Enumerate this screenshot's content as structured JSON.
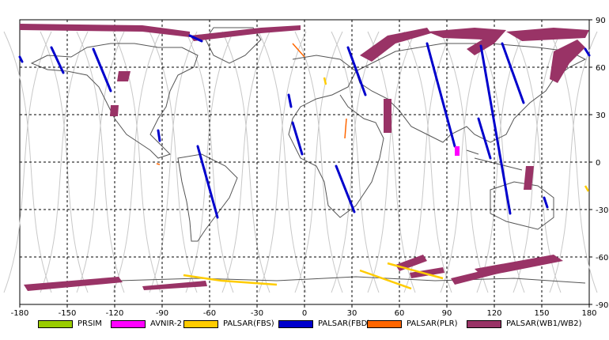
{
  "map": {
    "x_ticks": [
      "-180",
      "-150",
      "-120",
      "-90",
      "-60",
      "-30",
      "0",
      "30",
      "60",
      "90",
      "120",
      "150",
      "180"
    ],
    "y_ticks": [
      "90",
      "60",
      "30",
      "0",
      "-30",
      "-60",
      "-90"
    ],
    "x_range": [
      -180,
      180
    ],
    "y_range": [
      -90,
      90
    ],
    "grid": "dashed"
  },
  "legend": [
    {
      "label": "PRSIM",
      "color": "#99cc00"
    },
    {
      "label": "AVNIR-2",
      "color": "#ff00ff"
    },
    {
      "label": "PALSAR(FBS)",
      "color": "#ffcc00"
    },
    {
      "label": "PALSAR(FBD)",
      "color": "#0000cc"
    },
    {
      "label": "PALSAR(PLR)",
      "color": "#ff6600"
    },
    {
      "label": "PALSAR(WB1/WB2)",
      "color": "#993366"
    }
  ],
  "colors": {
    "orbit_lines": "#c8c8c8",
    "coastline": "#555555",
    "frame": "#000000"
  }
}
